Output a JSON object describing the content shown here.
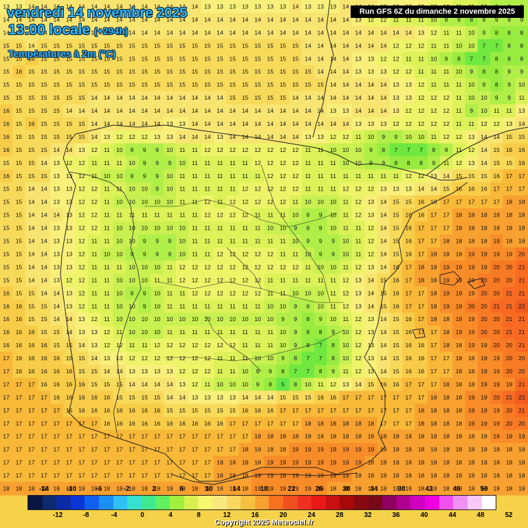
{
  "header": {
    "date_line": "vendredi 14 novembre 2025",
    "time_line": "13:00 locale",
    "lead_time": "(+294h)",
    "variable": "Températures à 2m (°C)",
    "run_info": "Run GFS 6Z du dimanche 2 novembre 2025"
  },
  "legend": {
    "top_labels": [
      "-14",
      "-10",
      "-6",
      "-2",
      "2",
      "6",
      "10",
      "14",
      "18",
      "22",
      "26",
      "30",
      "34",
      "38",
      "42",
      "46",
      "50"
    ],
    "bottom_labels": [
      "-12",
      "-8",
      "-4",
      "0",
      "4",
      "8",
      "12",
      "16",
      "20",
      "24",
      "28",
      "32",
      "36",
      "40",
      "44",
      "48",
      "52"
    ],
    "colors": [
      "#0a1642",
      "#0d2a6e",
      "#0a2aa8",
      "#0a36d8",
      "#1060f0",
      "#1a90f5",
      "#30c0f8",
      "#38e0d0",
      "#40e890",
      "#60f060",
      "#a0f040",
      "#d8f050",
      "#f8f870",
      "#f8e880",
      "#f8d860",
      "#f8c040",
      "#f8a030",
      "#f87020",
      "#f05020",
      "#f03020",
      "#e81818",
      "#c81010",
      "#a80808",
      "#880810",
      "#780818",
      "#900060",
      "#b00090",
      "#d000c0",
      "#f000e0",
      "#f050f0",
      "#f090f0",
      "#f8c8f8",
      "#ffffff"
    ]
  },
  "map_values": [
    "13 13 14 14 14 14 14 14 14 14 14 14 14 14 14 14 13 13 13 13 13 13 13 14 13 13 13 14 14 14 13 13 13 13 12 12 11 11 10 9 9 9",
    "14 14 14 14 14 14 14 14 14 14 14 14 14 14 14 14 14 14 14 14 14 14 14 14 14 14 14 14 13 12 12 11 11 11 10 9 9 8 9 9 9 9",
    "14 14 14 14 14 14 14 14 14 14 14 14 14 14 14 14 14 14 14 14 14 14 14 14 14 14 14 14 14 14 14 14 14 13 12 11 11 10 9 8 8 8",
    "15 15 14 15 15 15 15 15 15 15 15 15 15 15 15 15 15 15 15 15 15 15 15 15 14 14 14 14 14 14 14 12 12 12 11 11 10 10 7 7 8 8",
    "15 15 16 15 15 15 15 15 15 15 15 15 15 15 15 15 15 15 15 15 15 15 15 15 14 14 14 14 13 13 12 12 11 11 10 9 8 7 7 8 8 8",
    "15 16 15 15 15 15 15 15 15 15 15 15 15 15 15 15 15 15 15 15 15 15 15 15 15 14 14 14 13 13 13 12 12 11 11 11 10 9 8 8 9 9",
    "15 15 15 15 15 15 15 15 15 15 15 15 15 15 15 15 15 15 15 15 15 15 15 15 15 15 14 14 14 14 14 13 13 12 11 11 11 10 9 8 9 10",
    "15 15 15 15 15 15 15 14 14 14 14 14 14 14 14 14 14 14 15 15 15 15 15 14 14 14 14 14 14 14 14 13 13 12 12 12 11 10 10 9 9 11",
    "16 15 15 15 15 14 14 14 14 14 14 14 14 14 14 14 14 14 14 14 14 14 14 14 14 14 13 13 14 14 14 13 12 12 12 12 11 9 10 11 11 13",
    "16 15 16 15 15 15 15 14 14 14 14 14 14 13 13 14 14 14 14 14 14 14 14 14 14 14 14 14 13 13 13 12 12 12 12 12 11 11 12 12 13 14",
    "16 15 15 15 15 15 15 14 13 12 12 12 13 13 14 14 14 13 14 14 14 14 14 14 13 13 12 12 11 10 9 9 10 10 11 12 12 13 14 14 15 15",
    "16 15 15 15 14 14 13 12 11 10 9 9 9 10 11 11 12 12 12 12 12 12 12 12 11 11 10 10 10 9 8 7 7 7 8 9 11 12 14 15 16 16",
    "15 15 15 14 13 12 12 11 11 11 10 9 9 9 10 11 11 11 11 11 12 12 12 12 11 11 11 10 10 9 9 8 8 8 9 11 12 13 14 15 15 16",
    "16 15 15 15 13 13 12 11 10 10 9 9 9 10 11 11 11 11 11 11 11 12 12 12 11 11 11 11 11 11 11 11 12 12 13 14 15 15 15 16 17 17",
    "15 15 14 14 13 13 12 12 11 11 10 10 9 10 11 11 11 11 11 12 12 12 12 12 11 11 11 12 12 12 13 13 13 14 14 15 16 16 16 17 17 17",
    "15 15 14 14 13 13 12 12 11 10 10 10 10 10 11 11 12 11 12 12 12 12 12 11 10 10 10 11 12 13 14 15 15 16 16 17 17 17 17 17 18 18",
    "15 15 14 14 14 13 12 12 11 11 11 11 11 11 11 11 12 12 12 12 11 11 11 10 9 9 10 11 12 13 14 15 16 16 17 17 18 18 18 18 18 18",
    "15 15 14 14 13 13 12 12 11 10 10 10 10 10 10 11 11 11 11 11 11 10 10 9 9 9 10 11 11 12 14 15 16 17 17 17 18 18 18 18 18 18",
    "15 15 14 14 13 13 12 11 11 10 10 9 9 9 10 11 11 11 11 11 11 11 11 10 9 9 9 10 11 12 14 15 16 17 17 18 18 18 18 19 18 18",
    "15 15 14 14 13 13 12 11 10 10 9 9 9 9 10 11 11 12 12 12 12 12 11 11 10 9 9 10 11 12 14 15 16 17 18 18 18 19 19 19 19 20",
    "15 15 14 14 13 13 12 11 11 11 10 10 10 11 12 12 12 12 12 12 12 12 12 12 11 10 10 11 12 13 14 16 17 18 18 19 19 19 19 20 20 21",
    "15 15 14 14 13 12 12 11 11 10 10 10 11 11 12 12 12 12 12 12 12 11 11 11 11 11 11 12 13 14 15 16 17 18 18 19 19 19 20 20 20 21",
    "16 15 15 14 14 13 12 11 11 10 9 9 10 11 11 12 12 12 12 12 12 11 11 10 10 10 11 12 13 14 15 16 17 17 18 19 19 19 20 20 21 21",
    "16 16 15 15 14 13 12 11 11 10 10 9 10 11 11 11 11 11 11 11 11 10 10 9 9 10 11 12 13 14 15 16 17 17 18 19 19 20 20 21 21 22",
    "16 16 15 15 14 14 13 12 11 10 10 10 10 10 10 10 10 10 10 10 10 10 9 9 8 9 10 11 12 13 14 15 16 17 18 18 19 19 20 20 21 21",
    "16 16 16 15 15 14 13 13 12 11 10 10 10 11 11 11 11 11 11 11 11 11 10 9 8 8 9 10 12 13 14 15 16 17 17 18 19 19 20 20 21 21",
    "16 16 16 16 15 15 14 13 12 12 11 11 12 12 12 12 12 12 12 11 11 11 10 9 8 7 8 10 12 13 14 15 16 16 17 18 18 19 19 20 20 21",
    "17 16 16 16 16 15 15 14 13 13 12 12 12 12 12 12 12 11 11 11 10 10 9 8 7 7 8 10 12 13 14 15 16 16 17 17 18 18 19 19 20 20",
    "17 16 16 16 16 16 15 15 14 14 13 13 13 13 12 12 12 11 11 10 9 9 8 7 7 8 9 11 12 13 14 15 16 16 17 17 18 18 19 19 20 20",
    "17 17 17 16 16 16 16 15 15 15 14 14 14 14 13 12 11 10 10 10 9 8 5 8 10 11 12 13 14 15 16 16 17 17 17 18 18 18 19 19 19 21",
    "17 17 17 17 16 16 16 16 16 15 15 15 15 14 14 13 13 13 13 14 14 14 15 15 15 16 16 17 17 17 17 17 17 17 18 18 18 19 19 20 21 22",
    "17 17 17 17 17 16 16 16 16 16 16 16 16 15 15 15 15 15 15 16 16 16 17 17 17 17 17 17 17 17 17 17 17 18 18 18 18 19 19 19 20 21",
    "17 17 17 17 17 17 17 17 16 16 16 16 16 16 16 16 16 16 17 17 17 17 17 17 18 18 18 18 18 18 17 17 17 18 18 18 18 19 19 19 20 20",
    "17 17 17 17 17 17 17 17 17 17 17 17 17 17 17 17 17 17 17 17 18 18 18 18 18 18 18 18 18 18 18 18 18 18 18 18 18 18 18 19 19 19",
    "17 17 17 17 17 17 17 17 17 17 17 17 17 17 17 17 17 17 17 18 18 18 18 19 19 19 19 19 19 19 18 18 18 18 18 18 18 18 18 18 18 18",
    "17 17 17 17 17 17 17 17 17 17 17 17 17 17 17 17 17 18 18 18 18 19 19 19 19 19 19 19 19 18 18 18 18 18 18 18 18 18 18 18 18 18",
    "17 17 17 17 17 17 17 17 17 17 17 17 17 17 17 17 17 18 18 18 19 19 19 19 19 19 19 19 18 18 18 18 18 18 18 18 18 18 18 18 18 18",
    "18 18 18 18 18 18 18 18 18 18 18 18 18 18 18 18 18 18 18 18 19 19 19 19 19 19 18 18 18 18 18 18 18 18 18 18 18 18 18 18 18 18"
  ],
  "footer": {
    "copyright": "Copyright 2025 Meteociel.fr"
  }
}
